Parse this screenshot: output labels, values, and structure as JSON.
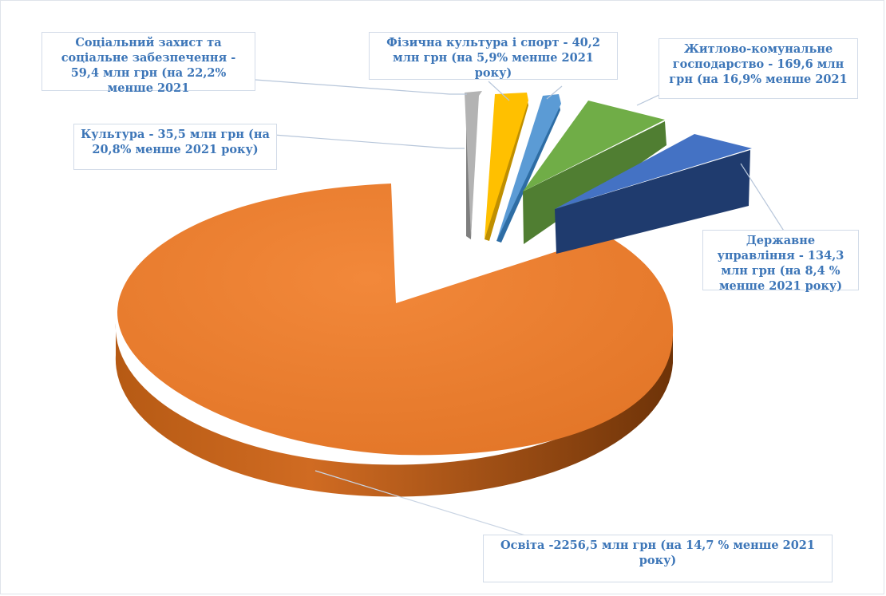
{
  "chart_data": {
    "type": "pie",
    "subtype": "3d-exploded",
    "slices": [
      {
        "name": "Освіта",
        "value": 2256.5,
        "color": "#ed7d31",
        "label": "Освіта -2256,5 млн грн (на 14,7 % менше  2021 року)"
      },
      {
        "name": "Культура",
        "value": 35.5,
        "color": "#a5a5a5",
        "label": "Культура - 35,5 млн грн (на 20,8% менше 2021 року)"
      },
      {
        "name": "Соціальний захист та соціальне забезпечення",
        "value": 59.4,
        "color": "#ffc000",
        "label": "Соціальний захист та соціальне забезпечення - 59,4 млн грн (на 22,2% менше 2021"
      },
      {
        "name": "Фізична культура і спорт",
        "value": 40.2,
        "color": "#5b9bd5",
        "label": "Фізична культура і спорт - 40,2 млн грн (на 5,9% менше 2021 року)"
      },
      {
        "name": "Житлово-комунальне господарство",
        "value": 169.6,
        "color": "#70ad47",
        "label": "Житлово-комунальне господарство - 169,6 млн грн (на 16,9% менше 2021"
      },
      {
        "name": "Державне управління",
        "value": 134.3,
        "color": "#4472c4",
        "label": "Державне управління - 134,3 млн грн (на 8,4 % менше 2021 року)"
      }
    ],
    "legend": "none",
    "data_labels": "callouts"
  },
  "labels": {
    "social": "Соціальний захист та соціальне забезпечення - 59,4 млн грн (на 22,2% менше 2021",
    "sport": "Фізична культура і спорт - 40,2 млн грн (на 5,9% менше 2021 року)",
    "housing": "Житлово-комунальне господарство - 169,6 млн грн (на 16,9% менше 2021",
    "culture": "Культура - 35,5 млн грн (на 20,8% менше 2021 року)",
    "government": "Державне управління - 134,3 млн грн (на 8,4 % менше 2021 року)",
    "education": "Освіта -2256,5 млн грн (на 14,7 % менше  2021 року)"
  }
}
